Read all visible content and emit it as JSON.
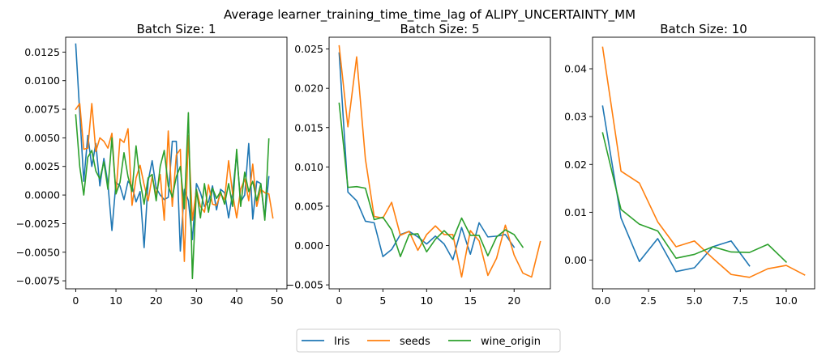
{
  "figure_title": "Average learner_training_time_time_lag of ALIPY_UNCERTAINTY_MM",
  "legend": [
    {
      "label": "Iris",
      "color": "#1f77b4"
    },
    {
      "label": "seeds",
      "color": "#ff7f0e"
    },
    {
      "label": "wine_origin",
      "color": "#2ca02c"
    }
  ],
  "chart_data": [
    {
      "type": "line",
      "title": "Batch Size: 1",
      "xlim": [
        -2.5,
        52.5
      ],
      "ylim": [
        -0.0082,
        0.0138
      ],
      "xticks": [
        0,
        10,
        20,
        30,
        40,
        50
      ],
      "xtick_labels": [
        "0",
        "10",
        "20",
        "30",
        "40",
        "50"
      ],
      "yticks": [
        -0.0075,
        -0.005,
        -0.0025,
        0.0,
        0.0025,
        0.005,
        0.0075,
        0.01,
        0.0125
      ],
      "ytick_labels": [
        "−0.0075",
        "−0.0050",
        "−0.0025",
        "0.0000",
        "0.0025",
        "0.0050",
        "0.0075",
        "0.0100",
        "0.0125"
      ],
      "series": [
        {
          "name": "Iris",
          "color": "#1f77b4",
          "values": [
            0.0132,
            0.0072,
            0.0012,
            0.0052,
            0.0025,
            0.0045,
            0.0008,
            0.0032,
            0.001,
            -0.0031,
            0.0011,
            0.0008,
            -0.0004,
            0.0012,
            0.0008,
            -0.0006,
            0.0003,
            -0.0046,
            0.0012,
            0.003,
            0.0006,
            0.0,
            -0.0004,
            -0.0002,
            0.0047,
            0.0047,
            -0.0049,
            0.0005,
            -0.0005,
            -0.0039,
            0.001,
            0.0002,
            -0.001,
            -0.0006,
            0.0008,
            -0.0013,
            0.0005,
            0.0002,
            -0.002,
            0.0002,
            0.0036,
            -0.0006,
            0.0,
            0.0045,
            -0.0021,
            0.0012,
            0.001,
            -0.002,
            0.0016
          ]
        },
        {
          "name": "seeds",
          "color": "#ff7f0e",
          "values": [
            0.0075,
            0.008,
            0.004,
            0.0041,
            0.008,
            0.0038,
            0.005,
            0.0047,
            0.0041,
            0.0054,
            0.0001,
            0.0049,
            0.0046,
            0.0058,
            -0.0009,
            0.0015,
            0.0026,
            0.0009,
            -0.0005,
            0.0016,
            0.0,
            0.0018,
            -0.0022,
            0.0056,
            -0.001,
            0.0035,
            0.004,
            -0.0058,
            0.0052,
            -0.0022,
            0.0005,
            -0.001,
            -0.0015,
            0.0009,
            -0.0008,
            -0.0009,
            0.0001,
            -0.0004,
            0.003,
            0.0001,
            -0.002,
            0.0005,
            0.0014,
            -0.0005,
            0.0027,
            -0.001,
            0.0005,
            0.0002,
            0.0001,
            -0.002
          ]
        },
        {
          "name": "wine_origin",
          "color": "#2ca02c",
          "values": [
            0.007,
            0.0025,
            0.0,
            0.0033,
            0.0039,
            0.0021,
            0.0014,
            0.0029,
            0.0005,
            0.005,
            0.0001,
            0.0011,
            0.0037,
            0.0016,
            0.0003,
            0.0043,
            0.0012,
            -0.0008,
            0.0015,
            0.0018,
            -0.0005,
            0.0025,
            0.0039,
            0.0008,
            -0.0002,
            0.0016,
            0.0025,
            -0.0012,
            0.0072,
            -0.0073,
            0.0005,
            -0.002,
            0.001,
            -0.0015,
            0.0006,
            -0.0003,
            0.0003,
            -0.0008,
            0.001,
            -0.001,
            0.004,
            -0.001,
            0.002,
            0.0003,
            0.0012,
            -0.0005,
            0.001,
            -0.0022,
            0.0049
          ]
        }
      ]
    },
    {
      "type": "line",
      "title": "Batch Size: 5",
      "xlim": [
        -1.15,
        24.15
      ],
      "ylim": [
        -0.0055,
        0.0265
      ],
      "xticks": [
        0,
        5,
        10,
        15,
        20
      ],
      "xtick_labels": [
        "0",
        "5",
        "10",
        "15",
        "20"
      ],
      "yticks": [
        -0.005,
        0.0,
        0.005,
        0.01,
        0.015,
        0.02,
        0.025
      ],
      "ytick_labels": [
        "−0.005",
        "0.000",
        "0.005",
        "0.010",
        "0.015",
        "0.020",
        "0.025"
      ],
      "series": [
        {
          "name": "Iris",
          "color": "#1f77b4",
          "values": [
            0.0245,
            0.0068,
            0.0057,
            0.0031,
            0.0029,
            -0.0014,
            -0.0005,
            0.0014,
            0.0018,
            0.0011,
            0.0002,
            0.0012,
            0.0002,
            -0.0018,
            0.0023,
            -0.0011,
            0.0029,
            0.0011,
            0.0012,
            0.0014,
            -0.0002
          ]
        },
        {
          "name": "seeds",
          "color": "#ff7f0e",
          "values": [
            0.0254,
            0.0151,
            0.024,
            0.011,
            0.0037,
            0.0035,
            0.0055,
            0.0013,
            0.0018,
            -0.0006,
            0.0014,
            0.0025,
            0.0014,
            0.0014,
            -0.004,
            0.0019,
            0.0006,
            -0.0038,
            -0.0016,
            0.0026,
            -0.0012,
            -0.0035,
            -0.004,
            0.0005
          ]
        },
        {
          "name": "wine_origin",
          "color": "#2ca02c",
          "values": [
            0.0181,
            0.0074,
            0.0075,
            0.0073,
            0.0033,
            0.0036,
            0.002,
            -0.0014,
            0.0014,
            0.0015,
            -0.0008,
            0.0008,
            0.0019,
            0.0008,
            0.0035,
            0.0013,
            0.0013,
            -0.0013,
            0.0011,
            0.002,
            0.0014,
            -0.0002
          ]
        }
      ]
    },
    {
      "type": "line",
      "title": "Batch Size: 10",
      "xlim": [
        -0.55,
        11.55
      ],
      "ylim": [
        -0.006,
        0.0466
      ],
      "xticks": [
        0.0,
        2.5,
        5.0,
        7.5,
        10.0
      ],
      "xtick_labels": [
        "0.0",
        "2.5",
        "5.0",
        "7.5",
        "10.0"
      ],
      "yticks": [
        0.0,
        0.01,
        0.02,
        0.03,
        0.04
      ],
      "ytick_labels": [
        "0.00",
        "0.01",
        "0.02",
        "0.03",
        "0.04"
      ],
      "series": [
        {
          "name": "Iris",
          "color": "#1f77b4",
          "values": [
            0.0322,
            0.0088,
            -0.0003,
            0.0045,
            -0.0024,
            -0.0016,
            0.0028,
            0.004,
            -0.0012
          ]
        },
        {
          "name": "seeds",
          "color": "#ff7f0e",
          "values": [
            0.0445,
            0.0186,
            0.0161,
            0.008,
            0.0028,
            0.004,
            0.0004,
            -0.003,
            -0.0036,
            -0.0018,
            -0.0011,
            -0.0031
          ]
        },
        {
          "name": "wine_origin",
          "color": "#2ca02c",
          "values": [
            0.0266,
            0.0106,
            0.0075,
            0.0061,
            0.0004,
            0.0012,
            0.0028,
            0.0017,
            0.0016,
            0.0033,
            -0.0004
          ]
        }
      ]
    }
  ]
}
